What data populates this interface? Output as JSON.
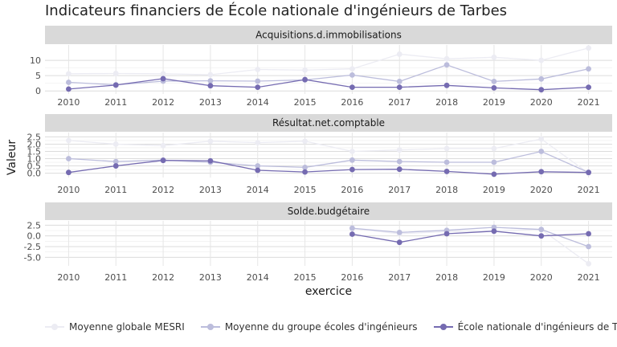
{
  "title": "Indicateurs financiers de École nationale d'ingénieurs de Tarbes",
  "chart_data": {
    "type": "line",
    "title": "Indicateurs financiers de École nationale d'ingénieurs de Tarbes",
    "xlabel": "exercice",
    "ylabel": "Valeur",
    "x": [
      "2010",
      "2011",
      "2012",
      "2013",
      "2014",
      "2015",
      "2016",
      "2017",
      "2018",
      "2019",
      "2020",
      "2021"
    ],
    "legend_position": "bottom",
    "series_styles": [
      {
        "name": "Moyenne globale MESRI",
        "color": "#ececf3"
      },
      {
        "name": "Moyenne du groupe écoles d'ingénieurs",
        "color": "#bcbddc"
      },
      {
        "name": "École nationale d'ingénieurs de Tarbes",
        "color": "#756bb1"
      }
    ],
    "panels": [
      {
        "label": "Acquisitions.d.immobilisations",
        "ylim": [
          -1,
          15
        ],
        "yticks": [
          0,
          5,
          10
        ],
        "yticklabels": [
          "0",
          "5",
          "10"
        ],
        "series": [
          {
            "name": "Moyenne globale MESRI",
            "values": [
              5.6,
              5.7,
              5.6,
              5.3,
              7.0,
              6.8,
              7.2,
              12.0,
              10.5,
              11.0,
              10.0,
              14.0
            ]
          },
          {
            "name": "Moyenne du groupe écoles d'ingénieurs",
            "values": [
              2.8,
              2.0,
              3.2,
              3.3,
              3.2,
              3.6,
              5.2,
              3.1,
              8.5,
              3.1,
              3.9,
              7.2
            ]
          },
          {
            "name": "École nationale d'ingénieurs de Tarbes",
            "values": [
              0.6,
              1.9,
              4.0,
              1.7,
              1.2,
              3.7,
              1.2,
              1.2,
              1.8,
              1.0,
              0.4,
              1.2
            ]
          }
        ]
      },
      {
        "label": "Résultat.net.comptable",
        "ylim": [
          -0.3,
          2.8
        ],
        "yticks": [
          0.0,
          0.5,
          1.0,
          1.5,
          2.0,
          2.5
        ],
        "yticklabels": [
          "0.0",
          "0.5",
          "1.0",
          "1.5",
          "2.0",
          "2.5"
        ],
        "series": [
          {
            "name": "Moyenne globale MESRI",
            "values": [
              2.25,
              2.0,
              1.9,
              2.2,
              2.1,
              2.2,
              1.5,
              1.6,
              1.7,
              1.7,
              2.35,
              0.0
            ]
          },
          {
            "name": "Moyenne du groupe écoles d'ingénieurs",
            "values": [
              1.0,
              0.8,
              0.9,
              0.75,
              0.5,
              0.4,
              0.9,
              0.8,
              0.75,
              0.75,
              1.5,
              0.05
            ]
          },
          {
            "name": "École nationale d'ingénieurs de Tarbes",
            "values": [
              0.05,
              0.5,
              0.88,
              0.85,
              0.2,
              0.08,
              0.25,
              0.27,
              0.12,
              -0.07,
              0.1,
              0.05
            ]
          }
        ]
      },
      {
        "label": "Solde.budgétaire",
        "ylim": [
          -7,
          3.5
        ],
        "yticks": [
          -5.0,
          -2.5,
          0.0,
          2.5
        ],
        "yticklabels": [
          "-5.0",
          "-2.5",
          "0.0",
          "2.5"
        ],
        "series": [
          {
            "name": "Moyenne globale MESRI",
            "values": [
              null,
              null,
              null,
              null,
              null,
              null,
              1.7,
              0.5,
              1.0,
              1.2,
              1.5,
              -6.5
            ]
          },
          {
            "name": "Moyenne du groupe écoles d'ingénieurs",
            "values": [
              null,
              null,
              null,
              null,
              null,
              null,
              1.8,
              0.8,
              1.3,
              2.0,
              1.5,
              -2.5
            ]
          },
          {
            "name": "École nationale d'ingénieurs de Tarbes",
            "values": [
              null,
              null,
              null,
              null,
              null,
              null,
              0.4,
              -1.5,
              0.5,
              1.1,
              0.0,
              0.5
            ]
          }
        ]
      }
    ]
  }
}
